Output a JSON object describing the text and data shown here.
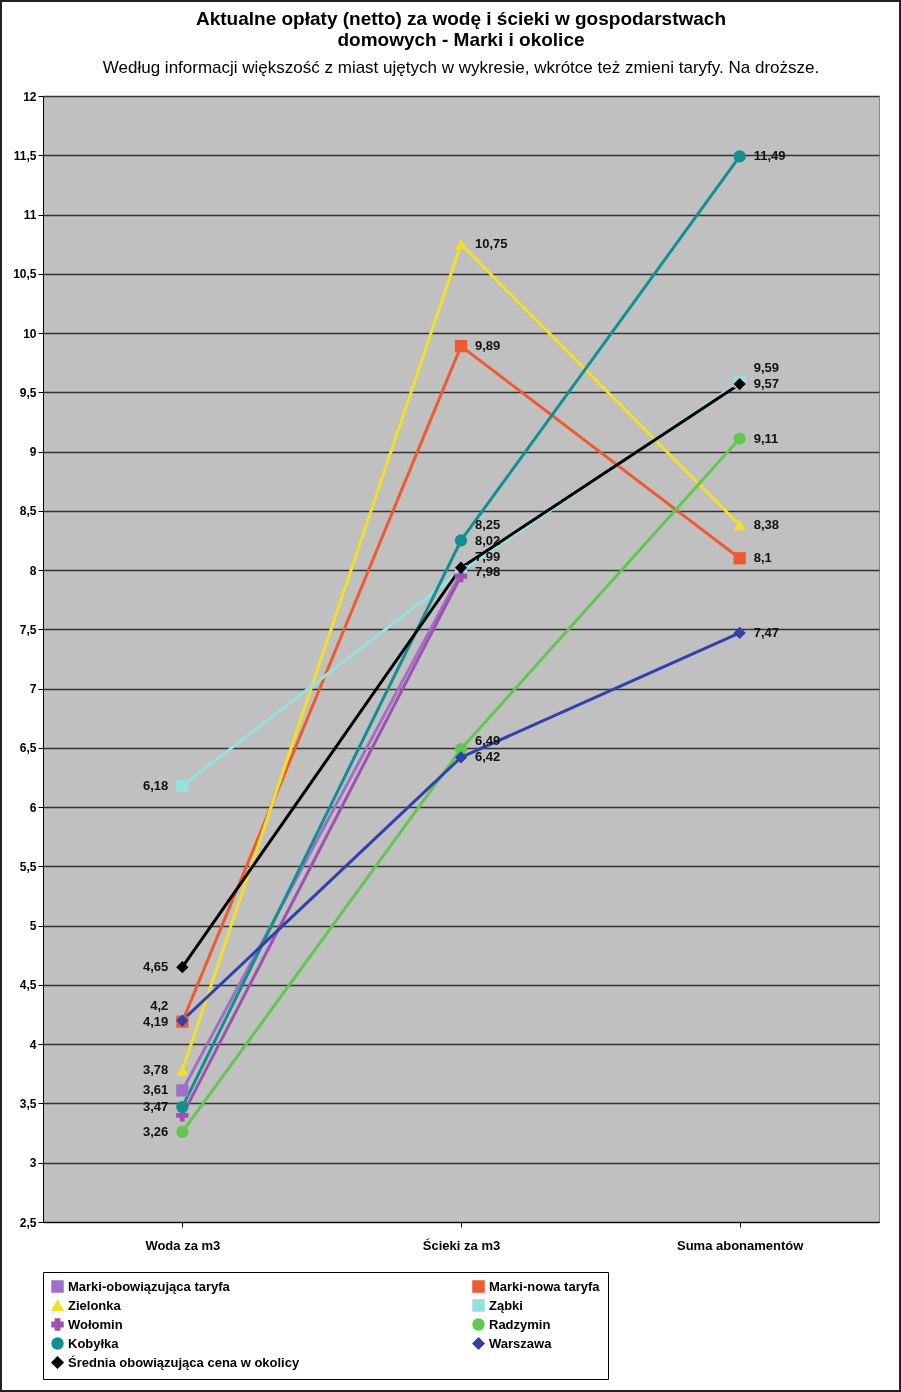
{
  "chart_data": {
    "type": "line",
    "title": [
      "Aktualne opłaty (netto) za wodę i ścieki w gospodarstwach",
      "domowych - Marki i okolice"
    ],
    "subtitle": "Według informacji większość z miast ujętych w wykresie, wkrótce też zmieni taryfy. Na droższe.",
    "categories": [
      "Woda za m3",
      "Ścieki za m3",
      "Suma abonamentów"
    ],
    "series": [
      {
        "name": "Marki-obowiązująca taryfa",
        "color": "#a070c8",
        "marker": "square",
        "values": [
          3.61,
          7.98,
          null
        ],
        "value_labels": [
          "3,61",
          "7,98",
          null
        ]
      },
      {
        "name": "Marki-nowa taryfa",
        "color": "#f05a30",
        "marker": "square",
        "values": [
          4.19,
          9.89,
          8.1
        ],
        "value_labels": [
          "4,19",
          "9,89",
          "8,1"
        ]
      },
      {
        "name": "Zielonka",
        "color": "#f0e028",
        "marker": "triangle",
        "values": [
          3.78,
          10.75,
          8.38
        ],
        "value_labels": [
          "3,78",
          "10,75",
          "8,38"
        ]
      },
      {
        "name": "Ząbki",
        "color": "#98e0e0",
        "marker": "square",
        "values": [
          6.18,
          7.99,
          9.59
        ],
        "value_labels": [
          "6,18",
          "7,99",
          "9,59"
        ]
      },
      {
        "name": "Wołomin",
        "color": "#a050b0",
        "marker": "cross",
        "values": [
          3.4,
          7.95,
          null
        ],
        "value_labels": [
          null,
          null,
          null
        ]
      },
      {
        "name": "Radzymin",
        "color": "#60c850",
        "marker": "circle",
        "values": [
          3.26,
          6.49,
          9.11
        ],
        "value_labels": [
          "3,26",
          "6,49",
          "9,11"
        ]
      },
      {
        "name": "Kobyłka",
        "color": "#109090",
        "marker": "circle",
        "values": [
          3.47,
          8.25,
          11.49
        ],
        "value_labels": [
          "3,47",
          "8,25",
          "11,49"
        ]
      },
      {
        "name": "Warszawa",
        "color": "#3040b0",
        "marker": "diamond",
        "values": [
          4.2,
          6.42,
          7.47
        ],
        "value_labels": [
          "4,2",
          "6,42",
          "7,47"
        ]
      },
      {
        "name": "Średnia obowiązująca cena w okolicy",
        "color": "#000000",
        "marker": "diamond",
        "values": [
          4.65,
          8.02,
          9.57
        ],
        "value_labels": [
          "4,65",
          "8,02",
          "9,57"
        ]
      }
    ],
    "ylim": [
      2.5,
      12
    ],
    "yticks": [
      {
        "value": 2.5,
        "label": "2,5"
      },
      3,
      {
        "value": 3.5,
        "label": "3,5"
      },
      4,
      {
        "value": 4.5,
        "label": "4,5"
      },
      5,
      {
        "value": 5.5,
        "label": "5,5"
      },
      6,
      {
        "value": 6.5,
        "label": "6,5"
      },
      7,
      {
        "value": 7.5,
        "label": "7,5"
      },
      8,
      {
        "value": 8.5,
        "label": "8,5"
      },
      9,
      {
        "value": 9.5,
        "label": "9,5"
      },
      10,
      {
        "value": 10.5,
        "label": "10,5"
      },
      11,
      {
        "value": 11.5,
        "label": "11,5"
      },
      12
    ],
    "grid": "y",
    "legend": "bottom"
  }
}
